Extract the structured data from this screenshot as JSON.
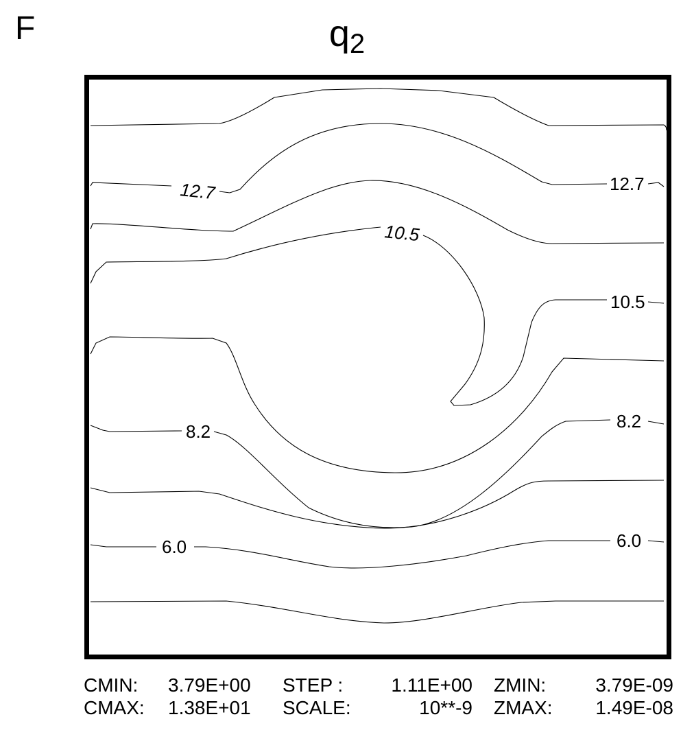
{
  "panel_label": "F",
  "chart_data": {
    "type": "contour",
    "title_main": "q",
    "title_sub": "2",
    "contour_labels": [
      {
        "text": "12.7",
        "italic": true
      },
      {
        "text": "12.7",
        "italic": false
      },
      {
        "text": "10.5",
        "italic": true
      },
      {
        "text": "10.5",
        "italic": false
      },
      {
        "text": "8.2",
        "italic": false
      },
      {
        "text": "8.2",
        "italic": false
      },
      {
        "text": "6.0",
        "italic": false
      },
      {
        "text": "6.0",
        "italic": false
      }
    ],
    "cmin": 3.79,
    "cmax": 13.8,
    "step": 1.11,
    "scale_exponent": -9,
    "zmin": 3.79e-09,
    "zmax": 1.49e-08
  },
  "footer": {
    "cmin_label": "CMIN:",
    "cmin_value": "3.79E+00",
    "step_label": "STEP :",
    "step_value": "1.11E+00",
    "zmin_label": "ZMIN:",
    "zmin_value": "3.79E-09",
    "cmax_label": "CMAX:",
    "cmax_value": "1.38E+01",
    "scale_label": "SCALE:",
    "scale_value": "10**-9",
    "zmax_label": "ZMAX:",
    "zmax_value": "1.49E-08"
  }
}
